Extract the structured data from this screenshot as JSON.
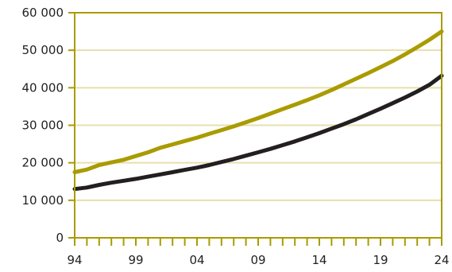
{
  "colors": {
    "frame": "#a99b00",
    "grid": "#e6dfae",
    "series_1": "#a99b00",
    "series_2": "#231f20",
    "text": "#222222"
  },
  "chart_data": {
    "type": "line",
    "title": "",
    "xlabel": "",
    "ylabel": "",
    "xlim": [
      1994,
      2024
    ],
    "ylim": [
      0,
      60000
    ],
    "x_ticks": [
      "94",
      "99",
      "04",
      "09",
      "14",
      "19",
      "24"
    ],
    "y_ticks": [
      "0",
      "10 000",
      "20 000",
      "30 000",
      "40 000",
      "50 000",
      "60 000"
    ],
    "grid": "horizontal",
    "legend": "none",
    "x": [
      1994,
      1995,
      1996,
      1997,
      1998,
      1999,
      2000,
      2001,
      2002,
      2003,
      2004,
      2005,
      2006,
      2007,
      2008,
      2009,
      2010,
      2011,
      2012,
      2013,
      2014,
      2015,
      2016,
      2017,
      2018,
      2019,
      2020,
      2021,
      2022,
      2023,
      2024
    ],
    "series": [
      {
        "values": [
          17500,
          18200,
          19400,
          20100,
          20800,
          21800,
          22800,
          24000,
          24900,
          25800,
          26700,
          27700,
          28700,
          29700,
          30800,
          31900,
          33100,
          34300,
          35500,
          36700,
          38000,
          39400,
          40900,
          42400,
          43900,
          45500,
          47100,
          48900,
          50800,
          52800,
          55000
        ]
      },
      {
        "values": [
          13000,
          13400,
          14100,
          14700,
          15200,
          15700,
          16300,
          16900,
          17500,
          18100,
          18700,
          19400,
          20200,
          21000,
          21900,
          22800,
          23700,
          24700,
          25700,
          26800,
          27900,
          29100,
          30300,
          31600,
          33000,
          34400,
          35900,
          37400,
          39000,
          40800,
          43200
        ]
      }
    ]
  }
}
